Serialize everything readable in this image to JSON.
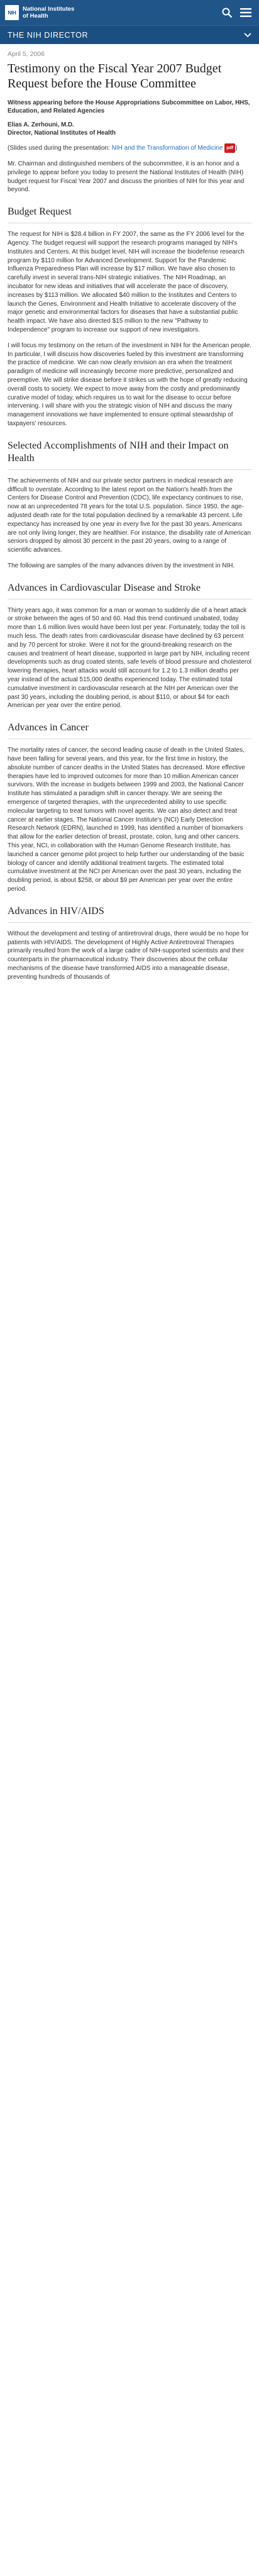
{
  "header": {
    "logo_abbrev": "NIH",
    "logo_line1": "National Institutes",
    "logo_line2": "of Health"
  },
  "section_bar": {
    "label": "THE NIH DIRECTOR"
  },
  "article": {
    "date": "April 5, 2006",
    "title": "Testimony on the Fiscal Year 2007 Budget Request before the House Committee",
    "subtitle": "Witness appearing before the House Appropriations Subcommittee on Labor, HHS, Education, and Related Agencies",
    "author_name": "Elias A. Zerhouni, M.D.",
    "author_title": "Director, National Institutes of Health",
    "slides_prefix": "(Slides used during the presentation: ",
    "slides_link": "NIH and the Transformation of Medicine",
    "slides_badge": "pdf",
    "slides_suffix": ")",
    "intro": "Mr. Chairman and distinguished members of the subcommittee, it is an honor and a privilege to appear before you today to present the National Institutes of Health (NIH) budget request for Fiscal Year 2007 and discuss the priorities of NIH for this year and beyond.",
    "sections": [
      {
        "heading": "Budget Request",
        "paragraphs": [
          "The request for NIH is $28.4 billion in FY 2007, the same as the FY 2006 level for the Agency. The budget request will support the research programs managed by NIH's Institutes and Centers. At this budget level, NIH will increase the biodefense research program by $110 million for Advanced Development. Support for the Pandemic Influenza Preparedness Plan will increase by $17 million. We have also chosen to carefully invest in several trans-NIH strategic initiatives. The NIH Roadmap, an incubator for new ideas and initiatives that will accelerate the pace of discovery, increases by $113 million. We allocated $40 million to the Institutes and Centers to launch the Genes, Environment and Health Initiative to accelerate discovery of the major genetic and environmental factors for diseases that have a substantial public health impact. We have also directed $15 million to the new \"Pathway to Independence\" program to increase our support of new investigators.",
          "I will focus my testimony on the return of the investment in NIH for the American people. In particular, I will discuss how discoveries fueled by this investment are transforming the practice of medicine. We can now clearly envision an era when the treatment paradigm of medicine will increasingly become more predictive, personalized and preemptive. We will strike disease before it strikes us with the hope of greatly reducing overall costs to society. We expect to move away from the costly and predominantly curative model of today, which requires us to wait for the disease to occur before intervening. I will share with you the strategic vision of NIH and discuss the many management innovations we have implemented to ensure optimal stewardship of taxpayers' resources."
        ]
      },
      {
        "heading": "Selected Accomplishments of NIH and their Impact on Health",
        "paragraphs": [
          "The achievements of NIH and our private sector partners in medical research are difficult to overstate. According to the latest report on the Nation's health from the Centers for Disease Control and Prevention (CDC), life expectancy continues to rise, now at an unprecedented 78 years for the total U.S. population. Since 1950, the age-adjusted death rate for the total population declined by a remarkable 43 percent. Life expectancy has increased by one year in every five for the past 30 years. Americans are not only living longer, they are healthier. For instance, the disability rate of American seniors dropped by almost 30 percent in the past 20 years, owing to a range of scientific advances.",
          "The following are samples of the many advances driven by the investment in NIH."
        ]
      },
      {
        "heading": "Advances in Cardiovascular Disease and Stroke",
        "paragraphs": [
          "Thirty years ago, it was common for a man or woman to suddenly die of a heart attack or stroke between the ages of 50 and 60. Had this trend continued unabated, today more than 1.6 million lives would have been lost per year. Fortunately, today the toll is much less. The death rates from cardiovascular disease have declined by 63 percent and by 70 percent for stroke. Were it not for the ground-breaking research on the causes and treatment of heart disease, supported in large part by NIH, including recent developments such as drug coated stents, safe levels of blood pressure and cholesterol lowering therapies, heart attacks would still account for 1.2 to 1.3 million deaths per year instead of the actual 515,000 deaths experienced today. The estimated total cumulative investment in cardiovascular research at the NIH per American over the past 30 years, including the doubling period, is about $110, or about $4 for each American per year over the entire period."
        ]
      },
      {
        "heading": "Advances in Cancer",
        "paragraphs": [
          "The mortality rates of cancer, the second leading cause of death in the United States, have been falling for several years, and this year, for the first time in history, the absolute number of cancer deaths in the United States has decreased. More effective therapies have led to improved outcomes for more than 10 million American cancer survivors. With the increase in budgets between 1999 and 2003, the National Cancer Institute has stimulated a paradigm shift in cancer therapy. We are seeing the emergence of targeted therapies, with the unprecedented ability to use specific molecular targeting to treat tumors with novel agents. We can also detect and treat cancer at earlier stages. The National Cancer Institute's (NCI) Early Detection Research Network (EDRN), launched in 1999, has identified a number of biomarkers that allow for the earlier detection of breast, prostate, colon, lung and other cancers. This year, NCI, in collaboration with the Human Genome Research Institute, has launched a cancer genome pilot project to help further our understanding of the basic biology of cancer and identify additional treatment targets. The estimated total cumulative investment at the NCI per American over the past 30 years, including the doubling period, is about $258, or about $9 per American per year over the entire period."
        ]
      },
      {
        "heading": "Advances in HIV/AIDS",
        "paragraphs": [
          "Without the development and testing of antiretroviral drugs, there would be no hope for patients with HIV/AIDS. The development of Highly Active Antiretroviral Therapies primarily resulted from the work of a large cadre of NIH-supported scientists and their counterparts in the pharmaceutical industry. Their discoveries about the cellular mechanisms of the disease have transformed AIDS into a manageable disease, preventing hundreds of thousands of"
        ]
      }
    ]
  }
}
